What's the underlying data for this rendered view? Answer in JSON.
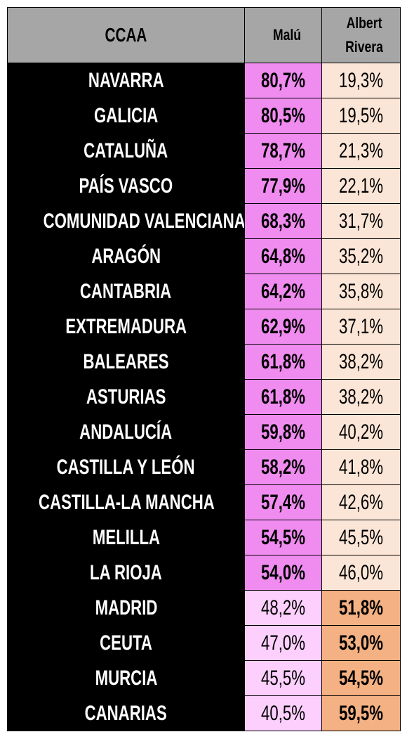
{
  "table": {
    "header": [
      "CCAA",
      "Malú",
      "Albert Rivera"
    ],
    "colors": {
      "header": "#a6a6a6",
      "region": "#000000",
      "malu_win": "#f08cf0",
      "malu_lose": "#fccffc",
      "albert_win": "#f4b183",
      "albert_lose": "#fbe5d6"
    },
    "rows": [
      [
        "NAVARRA",
        "80,7%",
        "19,3%"
      ],
      [
        "GALICIA",
        "80,5%",
        "19,5%"
      ],
      [
        "CATALUÑA",
        "78,7%",
        "21,3%"
      ],
      [
        "PAÍS VASCO",
        "77,9%",
        "22,1%"
      ],
      [
        "COMUNIDAD VALENCIANA",
        "68,3%",
        "31,7%"
      ],
      [
        "ARAGÓN",
        "64,8%",
        "35,2%"
      ],
      [
        "CANTABRIA",
        "64,2%",
        "35,8%"
      ],
      [
        "EXTREMADURA",
        "62,9%",
        "37,1%"
      ],
      [
        "BALEARES",
        "61,8%",
        "38,2%"
      ],
      [
        "ASTURIAS",
        "61,8%",
        "38,2%"
      ],
      [
        "ANDALUCÍA",
        "59,8%",
        "40,2%"
      ],
      [
        "CASTILLA Y LEÓN",
        "58,2%",
        "41,8%"
      ],
      [
        "CASTILLA-LA MANCHA",
        "57,4%",
        "42,6%"
      ],
      [
        "MELILLA",
        "54,5%",
        "45,5%"
      ],
      [
        "LA RIOJA",
        "54,0%",
        "46,0%"
      ],
      [
        "MADRID",
        "48,2%",
        "51,8%"
      ],
      [
        "CEUTA",
        "47,0%",
        "53,0%"
      ],
      [
        "MURCIA",
        "45,5%",
        "54,5%"
      ],
      [
        "CANARIAS",
        "40,5%",
        "59,5%"
      ]
    ]
  }
}
